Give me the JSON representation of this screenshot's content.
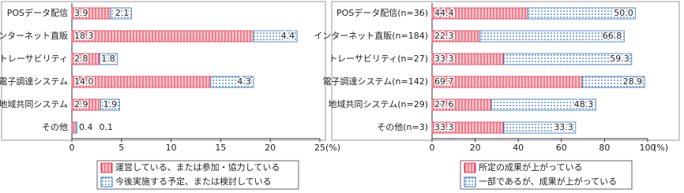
{
  "chart_data": [
    {
      "type": "stacked-barh",
      "x_unit": "(%)",
      "categories": [
        "POSデータ配信",
        "インターネット直販",
        "トレーサビリティ",
        "電子調達システム",
        "地域共同システム",
        "その他"
      ],
      "series": [
        {
          "name": "運営している、または参加・協力している",
          "color": "#e8384f",
          "values": [
            3.9,
            18.3,
            2.8,
            14.0,
            2.9,
            0.4
          ],
          "value_labels": [
            "3.9",
            "18.3",
            "2.8",
            "14.0",
            "2.9",
            "0.4"
          ]
        },
        {
          "name": "今後実施する予定、または検討している",
          "color": "#2f6fc0",
          "values": [
            2.1,
            4.4,
            1.8,
            4.3,
            1.9,
            0.1
          ],
          "value_labels": [
            "2.1",
            "4.4",
            "1.8",
            "4.3",
            "1.9",
            "0.1"
          ]
        }
      ],
      "xlim": [
        0,
        25
      ],
      "xticks": [
        0,
        5,
        10,
        15,
        20,
        25
      ]
    },
    {
      "type": "stacked-barh",
      "x_unit": "(%)",
      "categories": [
        "POSデータ配信(n=36)",
        "インターネット直販(n=184)",
        "トレーサビリティ(n=27)",
        "電子調達システム(n=142)",
        "地域共同システム(n=29)",
        "その他(n=3)"
      ],
      "series": [
        {
          "name": "所定の成果が上がっている",
          "color": "#e8384f",
          "values": [
            44.4,
            22.3,
            33.3,
            69.7,
            27.6,
            33.3
          ],
          "value_labels": [
            "44.4",
            "22.3",
            "33.3",
            "69.7",
            "27.6",
            "33.3"
          ]
        },
        {
          "name": "一部であるが、成果が上がっている",
          "color": "#2f6fc0",
          "values": [
            50.0,
            66.8,
            59.3,
            28.9,
            48.3,
            33.3
          ],
          "value_labels": [
            "50.0",
            "66.8",
            "59.3",
            "28.9",
            "48.3",
            "33.3"
          ]
        }
      ],
      "xlim": [
        0,
        100
      ],
      "xticks": [
        0,
        20,
        40,
        60,
        80,
        100
      ]
    }
  ]
}
